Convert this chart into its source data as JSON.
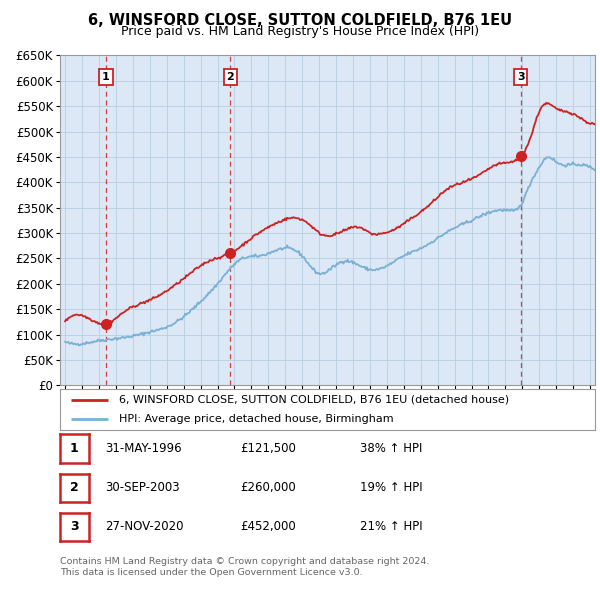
{
  "title": "6, WINSFORD CLOSE, SUTTON COLDFIELD, B76 1EU",
  "subtitle": "Price paid vs. HM Land Registry's House Price Index (HPI)",
  "legend_line1": "6, WINSFORD CLOSE, SUTTON COLDFIELD, B76 1EU (detached house)",
  "legend_line2": "HPI: Average price, detached house, Birmingham",
  "footer1": "Contains HM Land Registry data © Crown copyright and database right 2024.",
  "footer2": "This data is licensed under the Open Government Licence v3.0.",
  "transactions": [
    {
      "num": 1,
      "date": "31-MAY-1996",
      "price": 121500,
      "pct": "38%",
      "dir": "↑"
    },
    {
      "num": 2,
      "date": "30-SEP-2003",
      "price": 260000,
      "pct": "19%",
      "dir": "↑"
    },
    {
      "num": 3,
      "date": "27-NOV-2020",
      "price": 452000,
      "pct": "21%",
      "dir": "↑"
    }
  ],
  "sale_dates_decimal": [
    1996.415,
    2003.747,
    2020.906
  ],
  "sale_prices": [
    121500,
    260000,
    452000
  ],
  "hpi_color": "#7ab0d4",
  "price_color": "#cc2222",
  "vline_color": "#cc2222",
  "background_color": "#dce8f5",
  "grid_color": "#b8cfe0",
  "ylim": [
    0,
    650000
  ],
  "xlim_start": 1993.7,
  "xlim_end": 2025.3,
  "yticks": [
    0,
    50000,
    100000,
    150000,
    200000,
    250000,
    300000,
    350000,
    400000,
    450000,
    500000,
    550000,
    600000,
    650000
  ],
  "xticks": [
    1994,
    1995,
    1996,
    1997,
    1998,
    1999,
    2000,
    2001,
    2002,
    2003,
    2004,
    2005,
    2006,
    2007,
    2008,
    2009,
    2010,
    2011,
    2012,
    2013,
    2014,
    2015,
    2016,
    2017,
    2018,
    2019,
    2020,
    2021,
    2022,
    2023,
    2024,
    2025
  ]
}
